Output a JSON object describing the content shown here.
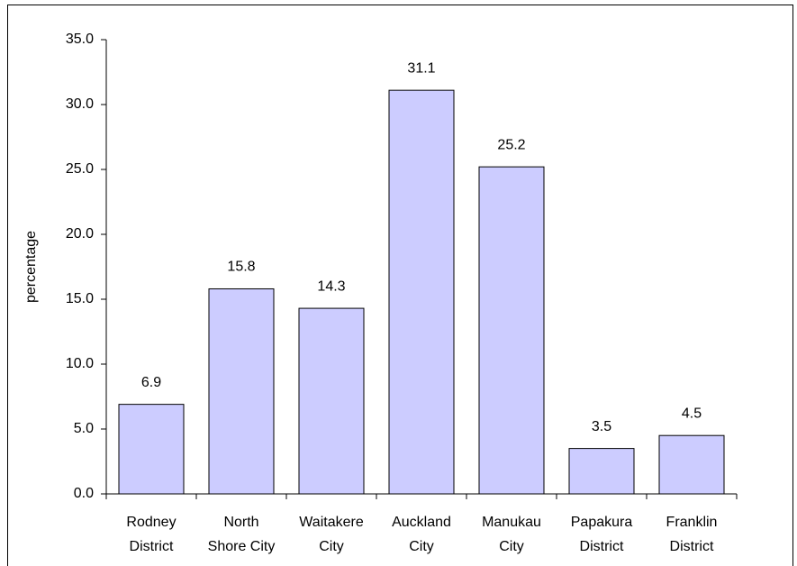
{
  "chart_data": {
    "type": "bar",
    "y_label": "percentage",
    "categories": [
      [
        "Rodney",
        "District"
      ],
      [
        "North",
        "Shore City"
      ],
      [
        "Waitakere",
        "City"
      ],
      [
        "Auckland",
        "City"
      ],
      [
        "Manukau",
        "City"
      ],
      [
        "Papakura",
        "District"
      ],
      [
        "Franklin",
        "District"
      ]
    ],
    "values": [
      6.9,
      15.8,
      14.3,
      31.1,
      25.2,
      3.5,
      4.5
    ],
    "color": "#ccccff",
    "ylim": [
      0,
      35
    ],
    "yticks": [
      {
        "value": 0,
        "label": "0.0"
      },
      {
        "value": 5,
        "label": "5.0"
      },
      {
        "value": 10,
        "label": "10.0"
      },
      {
        "value": 15,
        "label": "15.0"
      },
      {
        "value": 20,
        "label": "20.0"
      },
      {
        "value": 25,
        "label": "25.0"
      },
      {
        "value": 30,
        "label": "30.0"
      },
      {
        "value": 35,
        "label": "35.0"
      }
    ]
  }
}
